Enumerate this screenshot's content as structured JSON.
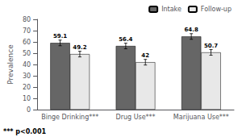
{
  "chart_data": {
    "type": "bar",
    "categories": [
      "Binge Drinking***",
      "Drug Use***",
      "Marijuana Use***"
    ],
    "series": [
      {
        "name": "Intake",
        "color": "#666666",
        "values": [
          59.1,
          56.4,
          64.8
        ],
        "errors": [
          2.5,
          2.5,
          2.5
        ]
      },
      {
        "name": "Follow-up",
        "color": "#e8e8e8",
        "values": [
          49.2,
          42.0,
          50.7
        ],
        "errors": [
          2.5,
          2.5,
          2.5
        ]
      }
    ],
    "ylabel": "Prevalence",
    "ylim": [
      0,
      80
    ],
    "yticks": [
      0,
      10,
      20,
      30,
      40,
      50,
      60,
      70,
      80
    ],
    "legend": "upper right",
    "data_labels": true,
    "grid": false,
    "footnote": "*** p<0.001"
  }
}
